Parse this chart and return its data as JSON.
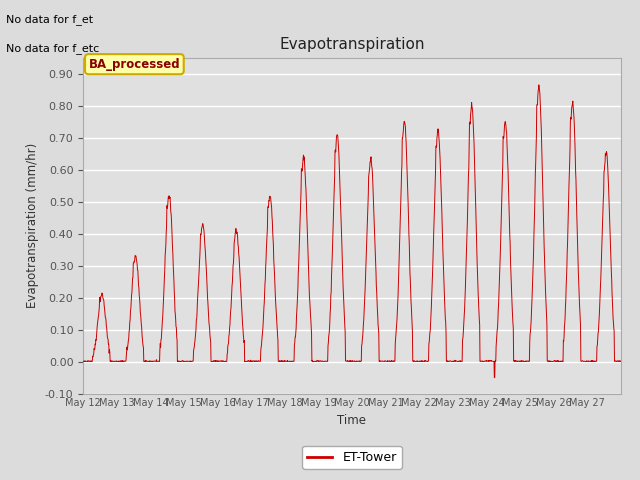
{
  "title": "Evapotranspiration",
  "ylabel": "Evapotranspiration (mm/hr)",
  "xlabel": "Time",
  "ylim": [
    -0.1,
    0.95
  ],
  "yticks": [
    -0.1,
    0.0,
    0.1,
    0.2,
    0.3,
    0.4,
    0.5,
    0.6,
    0.7,
    0.8,
    0.9
  ],
  "line_color": "#CC0000",
  "bg_color": "#DCDCDC",
  "plot_bg_color": "#E0E0E0",
  "grid_color": "#FFFFFF",
  "text_above": [
    "No data for f_et",
    "No data for f_etc"
  ],
  "badge_text": "BA_processed",
  "badge_bg": "#FFFFAA",
  "badge_border": "#CCAA00",
  "legend_label": "ET-Tower",
  "x_tick_labels": [
    "May 12",
    "May 13",
    "May 14",
    "May 15",
    "May 16",
    "May 17",
    "May 18",
    "May 19",
    "May 20",
    "May 21",
    "May 22",
    "May 23",
    "May 24",
    "May 25",
    "May 26",
    "May 27"
  ],
  "num_days": 16,
  "peak_values": [
    0.21,
    0.33,
    0.52,
    0.43,
    0.41,
    0.52,
    0.64,
    0.71,
    0.63,
    0.75,
    0.72,
    0.8,
    0.75,
    0.86,
    0.81,
    0.65
  ]
}
